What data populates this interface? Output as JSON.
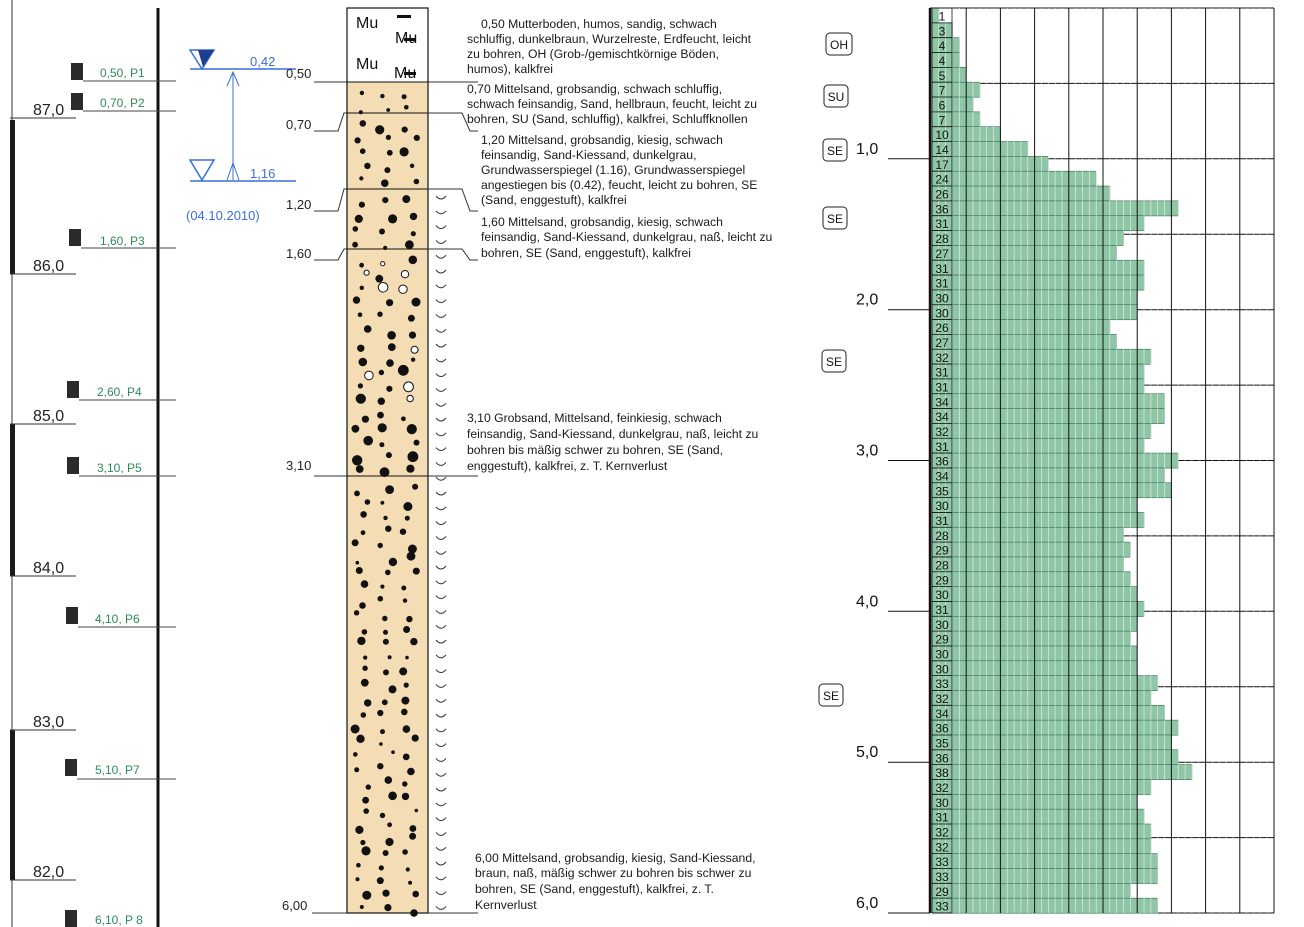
{
  "colors": {
    "sand_fill": "#f4ddb4",
    "blow_fill": "#8ec6a6",
    "sample_text": "#2e8b57",
    "water_blue": "#3a6fd8"
  },
  "elevation_scale": [
    "87,0",
    "86,0",
    "85,0",
    "84,0",
    "83,0",
    "82,0"
  ],
  "samples": [
    {
      "depth": 0.5,
      "label": "0,50, P1"
    },
    {
      "depth": 0.7,
      "label": "0,70, P2"
    },
    {
      "depth": 1.6,
      "label": "1,60, P3"
    },
    {
      "depth": 2.6,
      "label": "2,60, P4"
    },
    {
      "depth": 3.1,
      "label": "3,10, P5"
    },
    {
      "depth": 4.1,
      "label": "4,10, P6"
    },
    {
      "depth": 5.1,
      "label": "5,10, P7"
    },
    {
      "depth": 6.1,
      "label": "6,10, P 8"
    }
  ],
  "groundwater": {
    "level_1": "0,42",
    "level_2": "1,16",
    "date": "(04.10.2010)"
  },
  "layer_depth_labels": [
    "0,50",
    "0,70",
    "1,20",
    "1,60",
    "3,10",
    "6,00"
  ],
  "topsoil_symbol": "Mu",
  "layers": [
    {
      "bottom": 0.5,
      "type": "topsoil"
    },
    {
      "bottom": 0.7,
      "type": "sand_silty"
    },
    {
      "bottom": 1.2,
      "type": "sand_gravelly"
    },
    {
      "bottom": 1.6,
      "type": "sand_gravelly"
    },
    {
      "bottom": 3.1,
      "type": "sand_coarse"
    },
    {
      "bottom": 6.0,
      "type": "sand_gravelly"
    }
  ],
  "descriptions": [
    [
      "0,50  Mutterboden, humos, sandig, schwach",
      "schluffig, dunkelbraun, Wurzelreste, Erdfeucht, leicht",
      "zu bohren, OH (Grob-/gemischtkörnige Böden,",
      "humos), kalkfrei"
    ],
    [
      "0,70  Mittelsand, grobsandig, schwach schluffig,",
      "schwach feinsandig, Sand, hellbraun, feucht, leicht zu",
      "bohren, SU (Sand, schluffig), kalkfrei, Schluffknollen"
    ],
    [
      "1,20  Mittelsand, grobsandig, kiesig, schwach",
      "feinsandig, Sand-Kiessand, dunkelgrau,",
      "Grundwasserspiegel (1.16), Grundwasserspiegel",
      "angestiegen bis (0.42), feucht, leicht zu bohren, SE",
      "(Sand, enggestuft), kalkfrei"
    ],
    [
      "1,60  Mittelsand, grobsandig, kiesig, schwach",
      "feinsandig, Sand-Kiessand, dunkelgrau, naß, leicht zu",
      "bohren, SE (Sand, enggestuft), kalkfrei"
    ],
    [
      "3,10  Grobsand, Mittelsand, feinkiesig, schwach",
      "feinsandig, Sand-Kiessand, dunkelgrau, naß, leicht zu",
      "bohren bis mäßig schwer zu bohren, SE (Sand,",
      "enggestuft), kalkfrei, z. T. Kernverlust"
    ],
    [
      "6,00  Mittelsand, grobsandig, kiesig, Sand-Kiessand,",
      "braun, naß, mäßig schwer zu bohren bis schwer zu",
      "bohren, SE (Sand, enggestuft), kalkfrei, z. T.",
      "Kernverlust"
    ]
  ],
  "soil_codes": [
    "OH",
    "SU",
    "SE",
    "SE",
    "SE",
    "SE"
  ],
  "chart_data": {
    "type": "bar",
    "orientation": "horizontal",
    "y_ticks": [
      "1,0",
      "2,0",
      "3,0",
      "4,0",
      "5,0",
      "6,0"
    ],
    "y_range": [
      0,
      6
    ],
    "x_range": [
      0,
      50
    ],
    "grid": true,
    "blow_counts": [
      1,
      3,
      4,
      4,
      5,
      7,
      6,
      7,
      10,
      14,
      17,
      24,
      26,
      36,
      31,
      28,
      27,
      31,
      31,
      30,
      30,
      26,
      27,
      32,
      31,
      31,
      34,
      34,
      32,
      31,
      36,
      34,
      35,
      30,
      31,
      28,
      29,
      28,
      29,
      30,
      31,
      30,
      29,
      30,
      30,
      33,
      32,
      34,
      36,
      35,
      36,
      38,
      32,
      30,
      31,
      32,
      32,
      33,
      33,
      29,
      33
    ]
  }
}
